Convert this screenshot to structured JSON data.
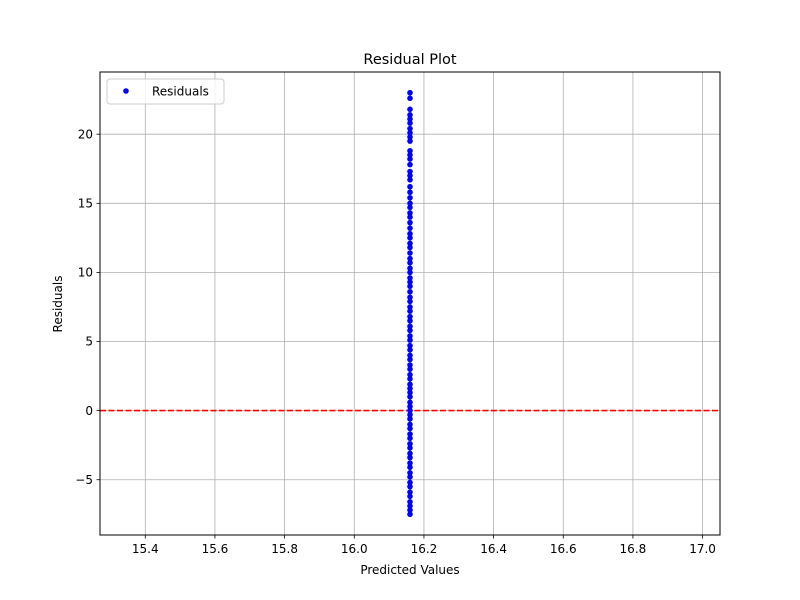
{
  "chart_data": {
    "type": "scatter",
    "title": "Residual Plot",
    "xlabel": "Predicted Values",
    "ylabel": "Residuals",
    "xlim": [
      15.27,
      17.05
    ],
    "ylim": [
      -9.0,
      24.5
    ],
    "xticks": [
      15.4,
      15.6,
      15.8,
      16.0,
      16.2,
      16.4,
      16.6,
      16.8,
      17.0
    ],
    "yticks": [
      -5,
      0,
      5,
      10,
      15,
      20
    ],
    "xtick_labels": [
      "15.4",
      "15.6",
      "15.8",
      "16.0",
      "16.2",
      "16.4",
      "16.6",
      "16.8",
      "17.0"
    ],
    "ytick_labels": [
      "−5",
      "0",
      "5",
      "10",
      "15",
      "20"
    ],
    "grid": true,
    "legend": {
      "position": "top-left",
      "entries": [
        "Residuals"
      ]
    },
    "reference_line": {
      "y": 0,
      "style": "dashed",
      "color": "#ff0000"
    },
    "series": [
      {
        "name": "Residuals",
        "color": "#0000ff",
        "x_constant": 16.16,
        "y": [
          23.0,
          22.6,
          21.8,
          21.4,
          21.1,
          20.8,
          20.4,
          20.1,
          19.8,
          19.5,
          18.8,
          18.5,
          18.2,
          17.8,
          17.3,
          17.0,
          16.7,
          16.2,
          15.8,
          15.4,
          15.0,
          14.7,
          14.3,
          14.0,
          13.6,
          13.2,
          12.8,
          12.5,
          12.1,
          11.8,
          11.4,
          11.0,
          10.7,
          10.3,
          10.0,
          9.6,
          9.3,
          9.0,
          8.6,
          8.2,
          7.9,
          7.5,
          7.2,
          6.8,
          6.5,
          6.1,
          5.8,
          5.4,
          5.1,
          4.7,
          4.4,
          4.0,
          3.7,
          3.3,
          3.0,
          2.6,
          2.3,
          1.9,
          1.6,
          1.3,
          1.0,
          0.6,
          0.3,
          0.0,
          -0.3,
          -0.6,
          -1.0,
          -1.3,
          -1.7,
          -2.0,
          -2.4,
          -2.7,
          -3.1,
          -3.4,
          -3.8,
          -4.1,
          -4.5,
          -4.8,
          -5.2,
          -5.5,
          -5.9,
          -6.2,
          -6.6,
          -6.9,
          -7.2,
          -7.5
        ]
      }
    ]
  }
}
